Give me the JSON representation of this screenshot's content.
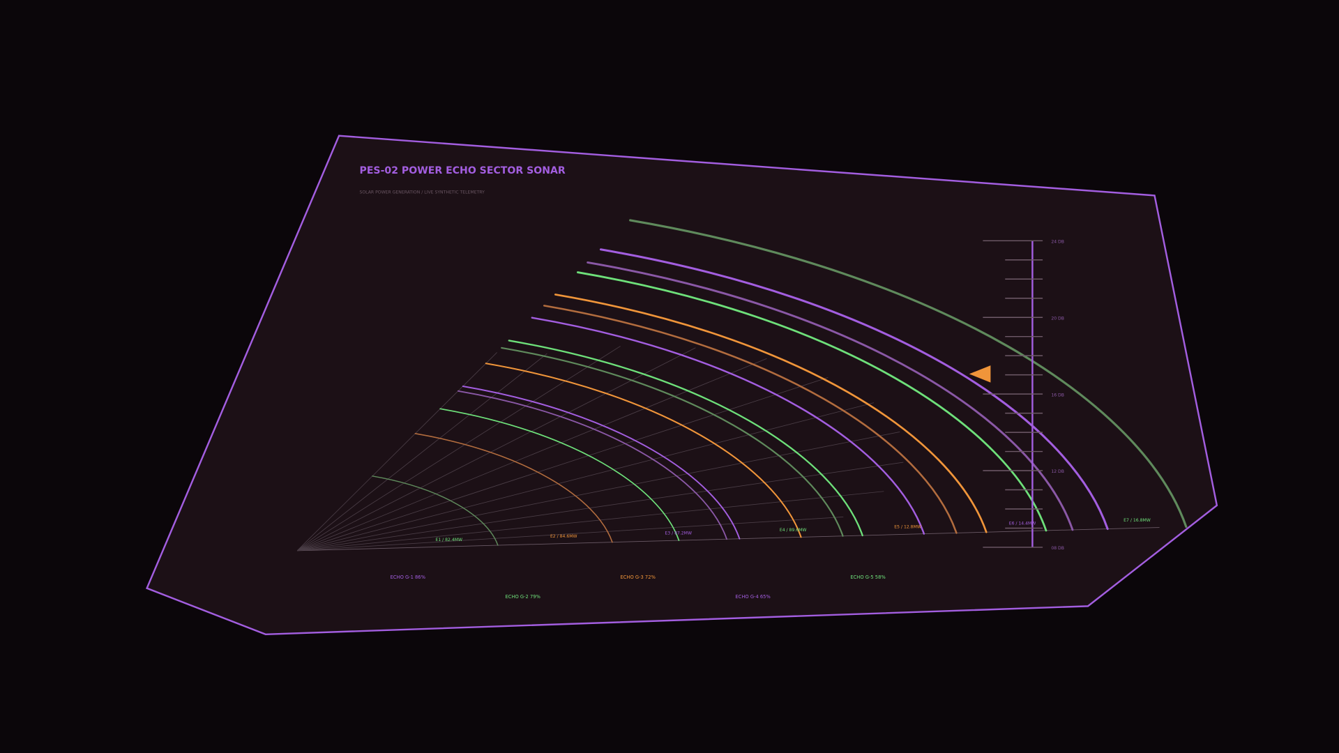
{
  "header": {
    "title": "PES-02  POWER ECHO SECTOR SONAR",
    "subtitle": "SOLAR POWER GENERATION / LIVE SYNTHETIC TELEMETRY"
  },
  "scale": {
    "labels": [
      "24 DB",
      "20 DB",
      "16 DB",
      "12 DB",
      "08 DB"
    ]
  },
  "arc_labels": [
    "E1 / 82.4MW",
    "E2 / 84.6MW",
    "E3 / 87.2MW",
    "E4 / 89.6MW",
    "E5 / 12.8MW",
    "E6 / 14.4MW",
    "E7 / 16.8MW"
  ],
  "echo_labels": [
    "ECHO G-1 86%",
    "ECHO G-2 79%",
    "ECHO G-3 72%",
    "ECHO G-4 65%",
    "ECHO G-5 58%"
  ]
}
